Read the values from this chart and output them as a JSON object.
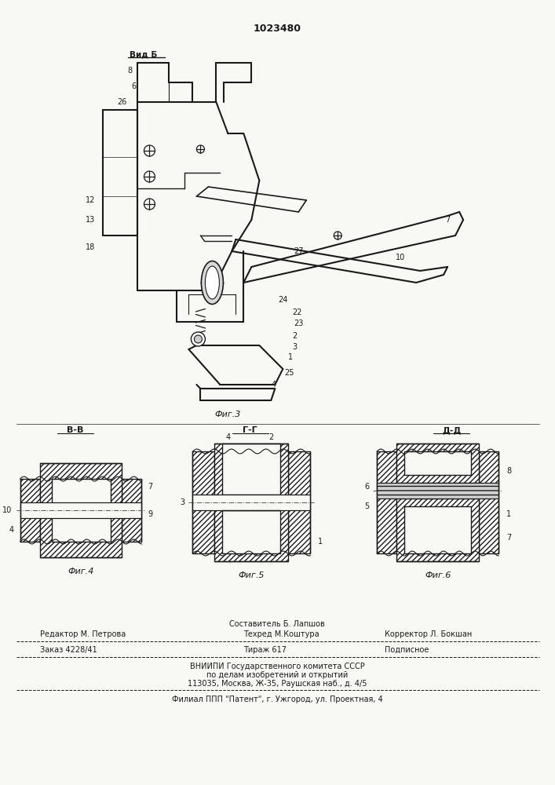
{
  "patent_number": "1023480",
  "bg_color": "#f8f8f5",
  "line_color": "#1a1a1a",
  "fig3_label": "Фиг.3",
  "fig4_label": "Фиг.4",
  "fig5_label": "Фиг.5",
  "fig6_label": "Фиг.6",
  "view_b": "В-В",
  "view_g": "Г-Г",
  "view_d": "Д-Д",
  "view_b_top": "Вид Б",
  "footer_col1_row1": "Редактор М. Петрова",
  "footer_col2_row0": "Составитель Б. Лапшов",
  "footer_col2_row1": "Техред М.Коштура",
  "footer_col3_row1": "Корректор Л. Бокшан",
  "footer_order": "Заказ 4228/41",
  "footer_tirazh": "Тираж 617",
  "footer_podp": "Подписное",
  "footer_vniipи": "ВНИИПИ Государственного комитета СССР",
  "footer_po_delam": "по делам изобретений и открытий",
  "footer_addr": "113035, Москва, Ж-35, Раушская наб., д. 4/5",
  "footer_filial": "Филиал ППП \"Патент\", г. Ужгород, ул. Проектная, 4"
}
